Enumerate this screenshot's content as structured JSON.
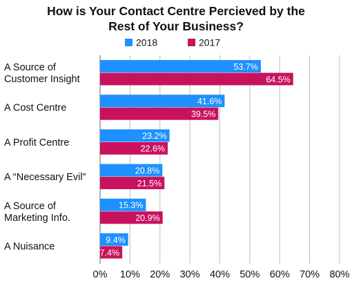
{
  "chart_data": {
    "type": "bar",
    "orientation": "horizontal",
    "title_lines": [
      "How is Your Contact Centre Percieved by the",
      "Rest of Your Business?"
    ],
    "categories": [
      [
        "A Source of",
        "Customer Insight"
      ],
      [
        "A Cost Centre"
      ],
      [
        "A Profit Centre"
      ],
      [
        "A “Necessary Evil”"
      ],
      [
        "A Source of",
        "Marketing Info."
      ],
      [
        "A Nuisance"
      ]
    ],
    "series": [
      {
        "name": "2018",
        "color": "#1e90ff",
        "values": [
          53.7,
          41.6,
          23.2,
          20.8,
          15.3,
          9.4
        ],
        "labels": [
          "53.7%",
          "41.6%",
          "23.2%",
          "20.8%",
          "15.3%",
          "9.4%"
        ]
      },
      {
        "name": "2017",
        "color": "#c8125e",
        "values": [
          64.5,
          39.5,
          22.6,
          21.5,
          20.9,
          7.4
        ],
        "labels": [
          "64.5%",
          "39.5%",
          "22.6%",
          "21.5%",
          "20.9%",
          "7.4%"
        ]
      }
    ],
    "xlim": [
      0,
      80
    ],
    "xticks": [
      0,
      10,
      20,
      30,
      40,
      50,
      60,
      70,
      80
    ],
    "xtick_labels": [
      "0%",
      "10%",
      "20%",
      "30%",
      "40%",
      "50%",
      "60%",
      "70%",
      "80%"
    ],
    "grid": true,
    "legend_position": "top-center"
  }
}
